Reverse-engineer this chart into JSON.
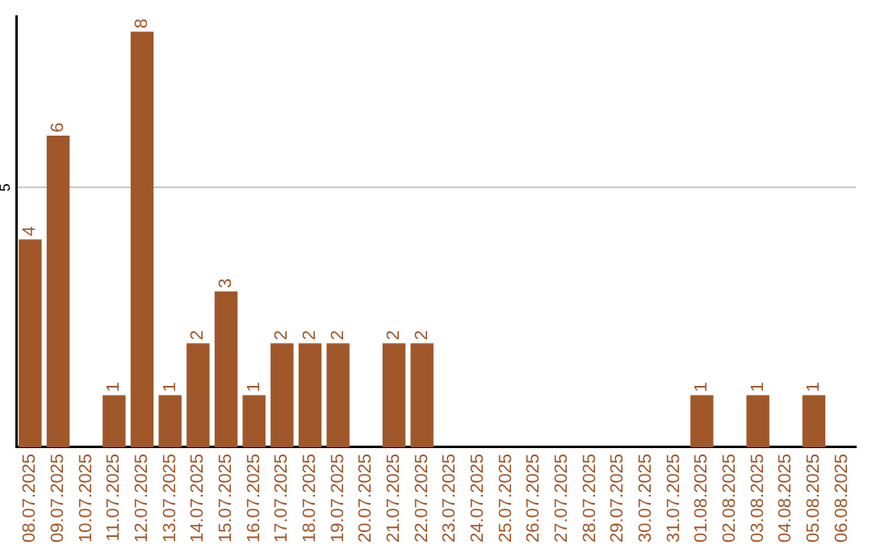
{
  "chart_data": {
    "type": "bar",
    "categories": [
      "08.07.2025",
      "09.07.2025",
      "10.07.2025",
      "11.07.2025",
      "12.07.2025",
      "13.07.2025",
      "14.07.2025",
      "15.07.2025",
      "16.07.2025",
      "17.07.2025",
      "18.07.2025",
      "19.07.2025",
      "20.07.2025",
      "21.07.2025",
      "22.07.2025",
      "23.07.2025",
      "24.07.2025",
      "25.07.2025",
      "26.07.2025",
      "27.07.2025",
      "28.07.2025",
      "29.07.2025",
      "30.07.2025",
      "31.07.2025",
      "01.08.2025",
      "02.08.2025",
      "03.08.2025",
      "04.08.2025",
      "05.08.2025",
      "06.08.2025"
    ],
    "values": [
      4,
      6,
      0,
      1,
      8,
      1,
      2,
      3,
      1,
      2,
      2,
      2,
      0,
      2,
      2,
      0,
      0,
      0,
      0,
      0,
      0,
      0,
      0,
      0,
      1,
      0,
      1,
      0,
      1,
      0
    ],
    "value_labels": [
      "4",
      "6",
      null,
      "1",
      "8",
      "1",
      "2",
      "3",
      "1",
      "2",
      "2",
      "2",
      null,
      "2",
      "2",
      null,
      null,
      null,
      null,
      null,
      null,
      null,
      null,
      null,
      "1",
      null,
      "1",
      null,
      "1",
      null
    ],
    "color": "#a0572a",
    "ylim": [
      0,
      8.3
    ],
    "yticks": [
      5
    ],
    "grid": "y",
    "legend": false
  }
}
